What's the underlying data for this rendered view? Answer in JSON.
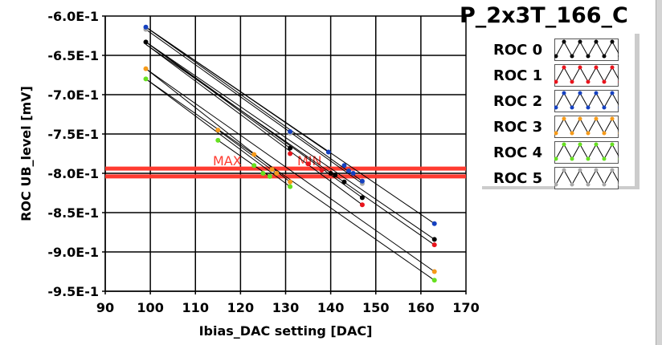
{
  "chart_data": {
    "type": "line",
    "title": "P_2x3T_166_C",
    "xlabel": "Ibias_DAC setting [DAC]",
    "ylabel": "ROC UB_level [mV]",
    "xlim": [
      90,
      170
    ],
    "ylim": [
      -0.95,
      -0.6
    ],
    "xticks": [
      "90",
      "100",
      "110",
      "120",
      "130",
      "140",
      "150",
      "160",
      "170"
    ],
    "yticks": [
      "-6.0E-1",
      "-6.5E-1",
      "-7.0E-1",
      "-7.5E-1",
      "-8.0E-1",
      "-8.5E-1",
      "-9.0E-1",
      "-9.5E-1"
    ],
    "grid": true,
    "legend_position": "top-right",
    "reference_lines": [
      {
        "label": "MAX",
        "y": -0.794,
        "color": "#ff3b30"
      },
      {
        "label": "MIN",
        "y": -0.804,
        "color": "#ff3b30"
      }
    ],
    "series": [
      {
        "name": "ROC 0",
        "color": "#000000",
        "lines": [
          [
            [
              99,
              -0.633
            ],
            [
              163,
              -0.884
            ]
          ],
          [
            [
              99,
              -0.633
            ],
            [
              147,
              -0.831
            ]
          ],
          [
            [
              99,
              -0.633
            ],
            [
              131,
              -0.768
            ]
          ]
        ],
        "points": [
          [
            99,
            -0.633
          ],
          [
            131,
            -0.768
          ],
          [
            140,
            -0.8
          ],
          [
            141,
            -0.802
          ],
          [
            143,
            -0.811
          ],
          [
            147,
            -0.831
          ],
          [
            163,
            -0.884
          ]
        ]
      },
      {
        "name": "ROC 1",
        "color": "#e8141c",
        "lines": [
          [
            [
              99,
              -0.636
            ],
            [
              163,
              -0.891
            ]
          ],
          [
            [
              99,
              -0.636
            ],
            [
              147,
              -0.84
            ]
          ]
        ],
        "points": [
          [
            131,
            -0.775
          ],
          [
            135,
            -0.788
          ],
          [
            138,
            -0.796
          ],
          [
            140,
            -0.8
          ],
          [
            147,
            -0.84
          ],
          [
            163,
            -0.891
          ]
        ]
      },
      {
        "name": "ROC 2",
        "color": "#1440c0",
        "lines": [
          [
            [
              99,
              -0.614
            ],
            [
              163,
              -0.864
            ]
          ],
          [
            [
              99,
              -0.614
            ],
            [
              147,
              -0.81
            ]
          ],
          [
            [
              99,
              -0.614
            ],
            [
              139.5,
              -0.773
            ]
          ]
        ],
        "points": [
          [
            99,
            -0.614
          ],
          [
            131,
            -0.747
          ],
          [
            139.5,
            -0.773
          ],
          [
            143,
            -0.79
          ],
          [
            144,
            -0.797
          ],
          [
            145,
            -0.8
          ],
          [
            147,
            -0.81
          ],
          [
            163,
            -0.864
          ]
        ]
      },
      {
        "name": "ROC 3",
        "color": "#f59a1a",
        "lines": [
          [
            [
              99,
              -0.667
            ],
            [
              163,
              -0.925
            ]
          ],
          [
            [
              99,
              -0.667
            ],
            [
              131,
              -0.811
            ]
          ],
          [
            [
              115,
              -0.745
            ],
            [
              128,
              -0.8
            ]
          ]
        ],
        "points": [
          [
            99,
            -0.667
          ],
          [
            115,
            -0.745
          ],
          [
            123,
            -0.776
          ],
          [
            127,
            -0.795
          ],
          [
            128,
            -0.8
          ],
          [
            131,
            -0.811
          ],
          [
            163,
            -0.925
          ]
        ]
      },
      {
        "name": "ROC 4",
        "color": "#66e020",
        "lines": [
          [
            [
              99,
              -0.68
            ],
            [
              163,
              -0.936
            ]
          ],
          [
            [
              99,
              -0.68
            ],
            [
              131,
              -0.817
            ]
          ],
          [
            [
              115,
              -0.758
            ],
            [
              126.5,
              -0.804
            ]
          ]
        ],
        "points": [
          [
            99,
            -0.68
          ],
          [
            115,
            -0.758
          ],
          [
            123,
            -0.79
          ],
          [
            125,
            -0.8
          ],
          [
            126.5,
            -0.804
          ],
          [
            131,
            -0.817
          ],
          [
            163,
            -0.936
          ]
        ]
      },
      {
        "name": "ROC 5",
        "color": "#a8a8a8",
        "lines": [
          [
            [
              99,
              -0.617
            ],
            [
              147,
              -0.813
            ]
          ]
        ],
        "points": [
          [
            99,
            -0.617
          ],
          [
            131,
            -0.749
          ],
          [
            147,
            -0.813
          ]
        ]
      }
    ]
  }
}
